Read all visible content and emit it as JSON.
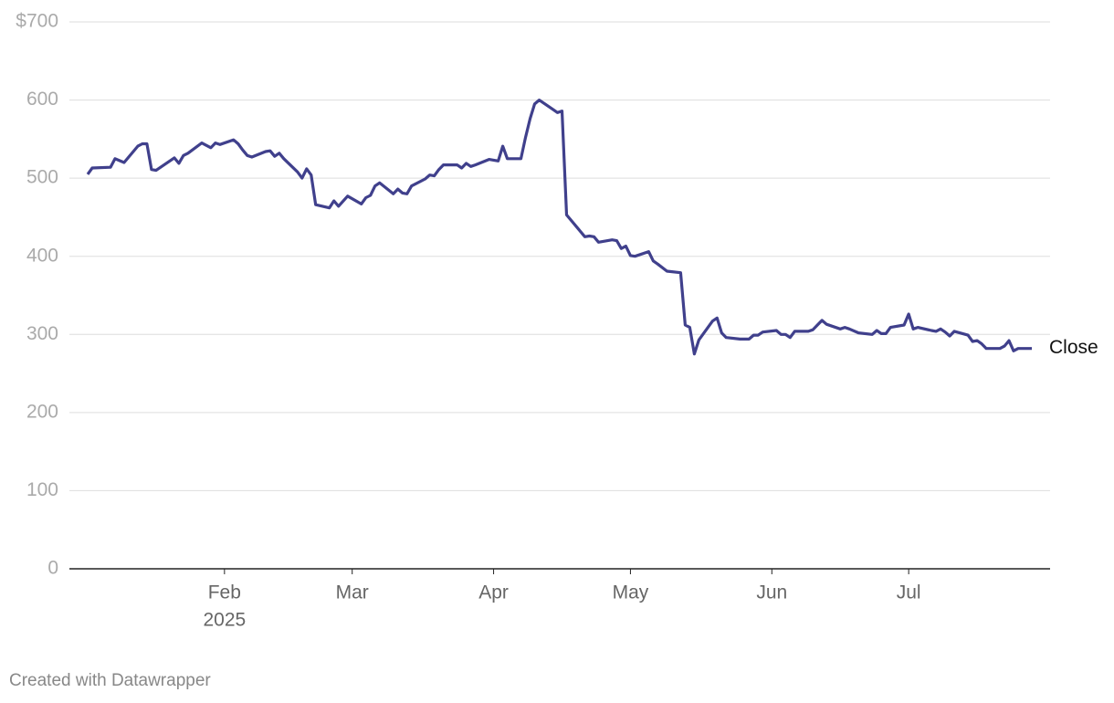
{
  "chart_data": {
    "type": "line",
    "x": [
      2,
      3,
      7,
      8,
      10,
      13,
      14,
      15,
      16,
      17,
      21,
      22,
      23,
      24,
      27,
      28,
      29,
      30,
      31,
      34,
      35,
      36,
      37,
      38,
      41,
      42,
      43,
      44,
      45,
      48,
      49,
      50,
      51,
      52,
      55,
      56,
      57,
      59,
      62,
      63,
      64,
      65,
      66,
      69,
      70,
      71,
      72,
      73,
      76,
      77,
      78,
      79,
      80,
      83,
      84,
      85,
      86,
      87,
      90,
      92,
      93,
      94,
      97,
      98,
      99,
      100,
      101,
      104,
      105,
      106,
      107,
      111,
      112,
      113,
      114,
      117,
      118,
      119,
      120,
      121,
      122,
      125,
      126,
      127,
      129,
      132,
      133,
      134,
      135,
      136,
      139,
      140,
      141,
      142,
      145,
      147,
      148,
      149,
      150,
      153,
      154,
      155,
      156,
      157,
      160,
      161,
      162,
      163,
      164,
      167,
      168,
      169,
      171,
      174,
      175,
      176,
      177,
      178,
      181,
      182,
      183,
      184,
      187,
      188,
      189,
      190,
      191,
      192,
      195,
      196,
      197,
      198,
      199,
      202,
      203,
      204,
      205,
      206,
      209
    ],
    "series": [
      {
        "name": "Close",
        "color": "#40408c",
        "values": [
          505,
          513,
          514,
          525,
          520,
          541,
          544,
          544,
          511,
          510,
          526,
          519,
          529,
          532,
          545,
          542,
          539,
          545,
          543,
          549,
          544,
          536,
          529,
          527,
          534,
          535,
          528,
          532,
          525,
          508,
          500,
          512,
          504,
          466,
          462,
          471,
          464,
          477,
          467,
          475,
          478,
          490,
          494,
          480,
          486,
          481,
          480,
          490,
          499,
          504,
          503,
          511,
          517,
          517,
          513,
          519,
          515,
          517,
          524,
          522,
          541,
          525,
          525,
          552,
          576,
          595,
          600,
          588,
          584,
          586,
          453,
          425,
          426,
          425,
          418,
          421,
          420,
          410,
          413,
          401,
          400,
          406,
          394,
          390,
          381,
          379,
          312,
          309,
          275,
          293,
          317,
          321,
          302,
          296,
          294,
          294,
          299,
          299,
          303,
          305,
          300,
          300,
          296,
          304,
          304,
          306,
          312,
          318,
          313,
          307,
          309,
          307,
          302,
          300,
          305,
          301,
          301,
          309,
          312,
          326,
          307,
          309,
          305,
          304,
          307,
          303,
          298,
          304,
          299,
          291,
          292,
          288,
          282,
          282,
          285,
          292,
          279,
          282,
          282
        ]
      }
    ],
    "xlim": [
      -2,
      213
    ],
    "xticks": [
      {
        "value": 32,
        "label": "Feb"
      },
      {
        "value": 60,
        "label": "Mar"
      },
      {
        "value": 91,
        "label": "Apr"
      },
      {
        "value": 121,
        "label": "May"
      },
      {
        "value": 152,
        "label": "Jun"
      },
      {
        "value": 182,
        "label": "Jul"
      }
    ],
    "x_year_label": "2025",
    "ylim": [
      0,
      700
    ],
    "yticks": [
      0,
      100,
      200,
      300,
      400,
      500,
      600,
      {
        "value": 700,
        "label": "$700"
      }
    ],
    "grid": true,
    "credit": "Created with Datawrapper"
  }
}
